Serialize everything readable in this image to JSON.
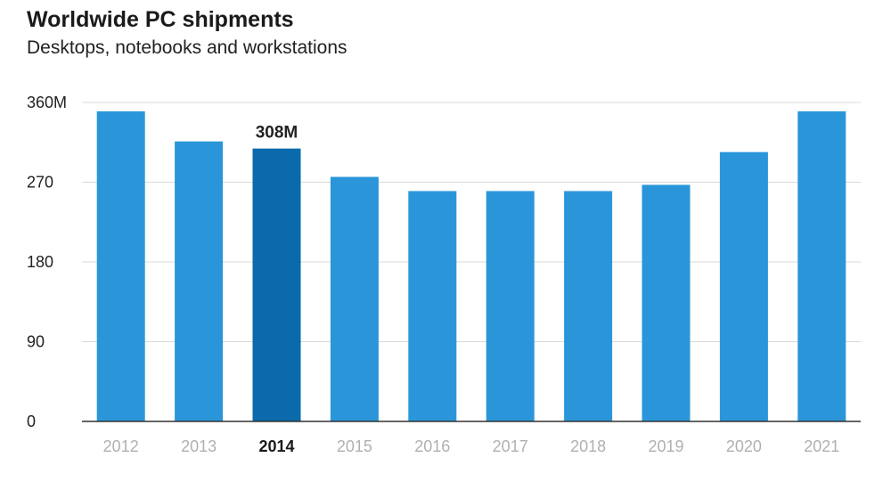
{
  "chart_data": {
    "type": "bar",
    "title": "Worldwide PC shipments",
    "subtitle": "Desktops, notebooks and workstations",
    "categories": [
      "2012",
      "2013",
      "2014",
      "2015",
      "2016",
      "2017",
      "2018",
      "2019",
      "2020",
      "2021"
    ],
    "values": [
      350,
      316,
      308,
      276,
      260,
      260,
      260,
      267,
      304,
      350
    ],
    "ylim": [
      0,
      360
    ],
    "yticks": [
      0,
      90,
      180,
      270,
      360
    ],
    "ytick_labels": [
      "0",
      "90",
      "180",
      "270",
      "360M"
    ],
    "highlight_index": 2,
    "data_labels": [
      {
        "index": 2,
        "text": "308M"
      }
    ],
    "grid": true,
    "colors": {
      "bar": "#2a96d9",
      "highlight": "#0a6aab",
      "grid": "#d9d9d9",
      "axis": "#333333"
    }
  }
}
